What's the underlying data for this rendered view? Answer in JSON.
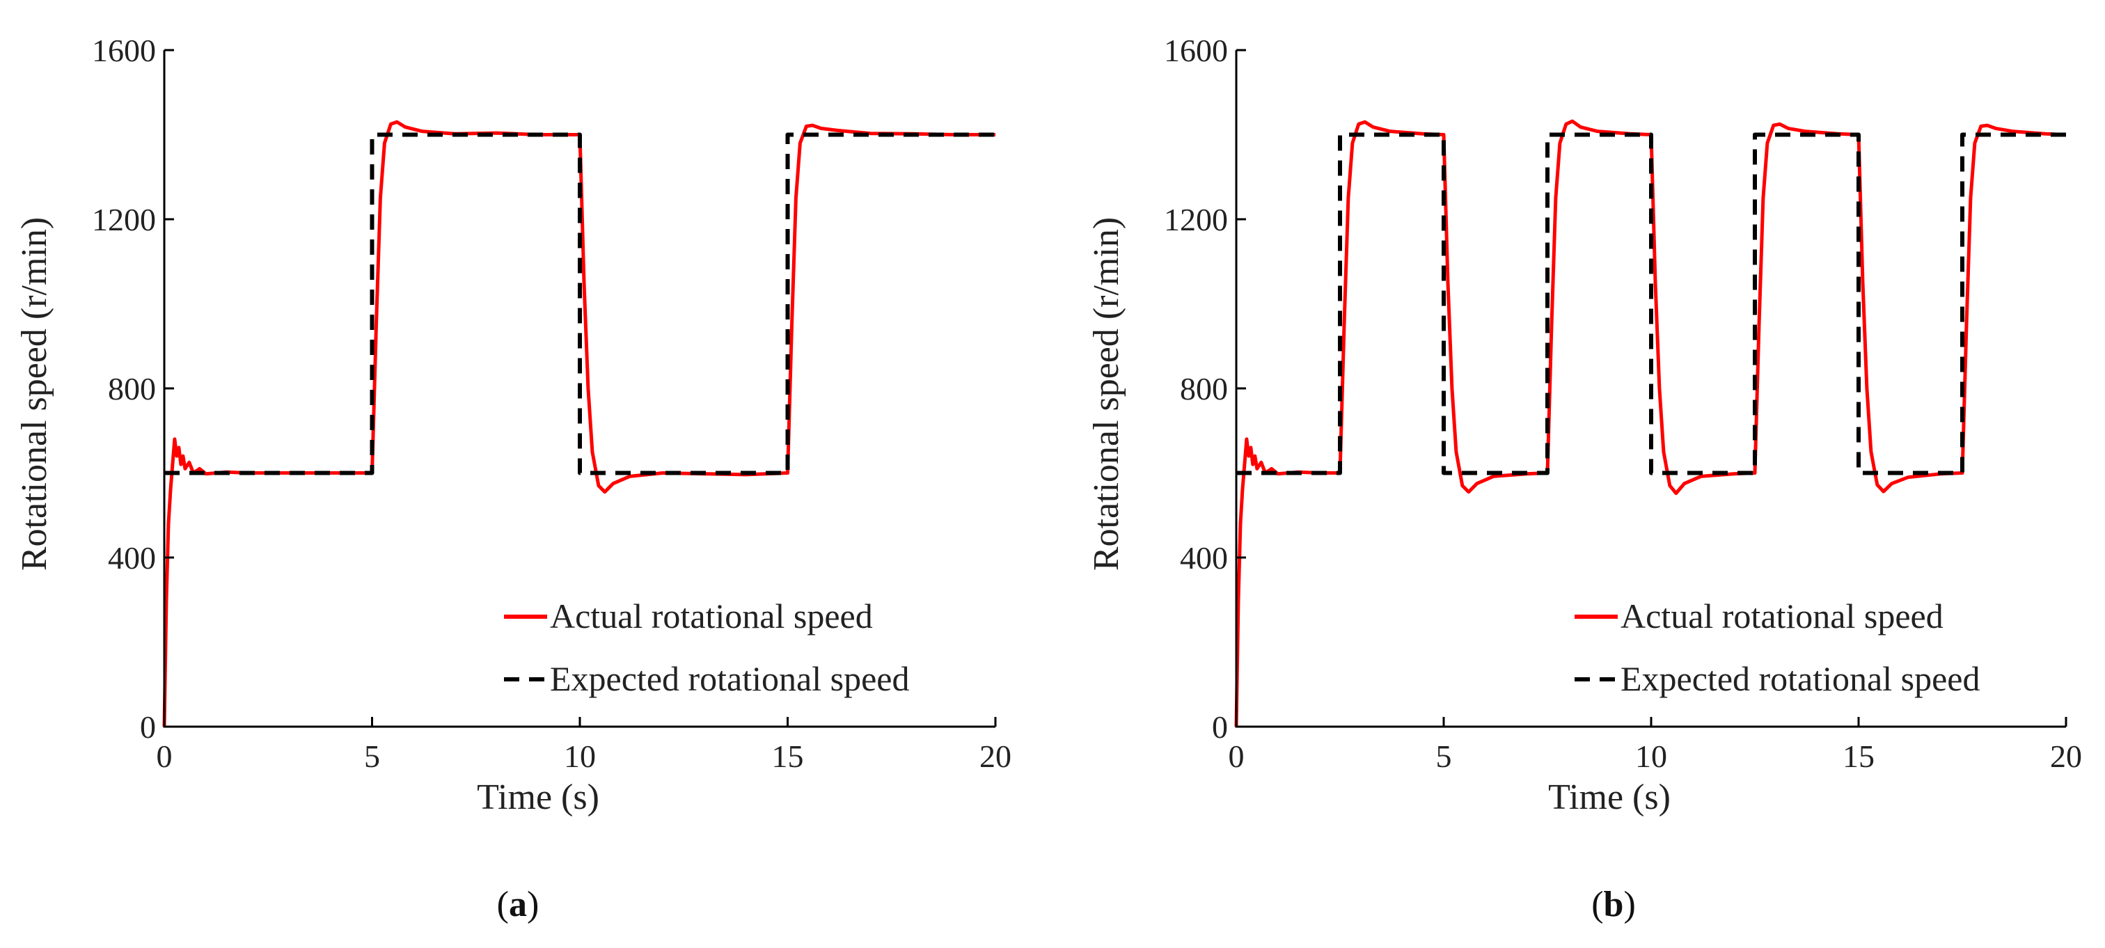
{
  "chart_data": [
    {
      "type": "line",
      "panel": "a",
      "caption_open": "(",
      "caption_letter": "a",
      "caption_close": ")",
      "xlabel": "Time (s)",
      "ylabel": "Rotational speed (r/min)",
      "xlim": [
        0,
        20
      ],
      "ylim": [
        0,
        1600
      ],
      "xticks": [
        0,
        5,
        10,
        15,
        20
      ],
      "yticks": [
        0,
        400,
        800,
        1200,
        1600
      ],
      "legend": {
        "position": "bottom-right",
        "entries": [
          "Actual rotational speed",
          "Expected rotational speed"
        ]
      },
      "series": [
        {
          "name": "Actual rotational speed",
          "color": "#ff0000",
          "style": "solid",
          "x": [
            0,
            0.05,
            0.1,
            0.15,
            0.2,
            0.25,
            0.3,
            0.35,
            0.4,
            0.45,
            0.5,
            0.6,
            0.7,
            0.85,
            1.0,
            1.5,
            2,
            3,
            4,
            5,
            5.1,
            5.2,
            5.3,
            5.45,
            5.6,
            5.8,
            6.2,
            7,
            8,
            9,
            10,
            10.1,
            10.2,
            10.3,
            10.45,
            10.6,
            10.8,
            11.2,
            12,
            13,
            14,
            15,
            15.1,
            15.2,
            15.3,
            15.45,
            15.6,
            15.8,
            16.2,
            17,
            18,
            19,
            20
          ],
          "y": [
            0,
            300,
            480,
            560,
            620,
            680,
            640,
            660,
            620,
            640,
            610,
            625,
            600,
            610,
            598,
            602,
            600,
            600,
            600,
            600,
            950,
            1250,
            1380,
            1425,
            1430,
            1418,
            1408,
            1402,
            1404,
            1400,
            1400,
            1050,
            800,
            650,
            570,
            555,
            575,
            592,
            600,
            598,
            596,
            600,
            950,
            1250,
            1380,
            1420,
            1422,
            1415,
            1410,
            1403,
            1402,
            1400,
            1400
          ]
        },
        {
          "name": "Expected rotational speed",
          "color": "#000000",
          "style": "dashed",
          "x": [
            0,
            5,
            5,
            10,
            10,
            15,
            15,
            20
          ],
          "y": [
            600,
            600,
            1400,
            1400,
            600,
            600,
            1400,
            1400
          ]
        }
      ]
    },
    {
      "type": "line",
      "panel": "b",
      "caption_open": "(",
      "caption_letter": "b",
      "caption_close": ")",
      "xlabel": "Time (s)",
      "ylabel": "Rotational speed (r/min)",
      "xlim": [
        0,
        20
      ],
      "ylim": [
        0,
        1600
      ],
      "xticks": [
        0,
        5,
        10,
        15,
        20
      ],
      "yticks": [
        0,
        400,
        800,
        1200,
        1600
      ],
      "legend": {
        "position": "bottom-right",
        "entries": [
          "Actual rotational speed",
          "Expected rotational speed"
        ]
      },
      "series": [
        {
          "name": "Actual rotational speed",
          "color": "#ff0000",
          "style": "solid",
          "x": [
            0,
            0.05,
            0.1,
            0.15,
            0.2,
            0.25,
            0.3,
            0.35,
            0.4,
            0.45,
            0.5,
            0.6,
            0.7,
            0.85,
            1.0,
            1.5,
            2,
            2.5,
            2.6,
            2.7,
            2.8,
            2.95,
            3.1,
            3.3,
            3.7,
            4.5,
            5,
            5.1,
            5.2,
            5.3,
            5.45,
            5.6,
            5.8,
            6.2,
            7,
            7.5,
            7.6,
            7.7,
            7.8,
            7.95,
            8.1,
            8.3,
            8.7,
            9.5,
            10,
            10.1,
            10.2,
            10.3,
            10.45,
            10.6,
            10.8,
            11.2,
            12,
            12.5,
            12.6,
            12.7,
            12.8,
            12.95,
            13.1,
            13.3,
            13.7,
            14.5,
            15,
            15.1,
            15.2,
            15.3,
            15.45,
            15.6,
            15.8,
            16.2,
            17,
            17.5,
            17.6,
            17.7,
            17.8,
            17.95,
            18.1,
            18.3,
            18.7,
            19.5,
            20
          ],
          "y": [
            0,
            300,
            480,
            560,
            620,
            680,
            640,
            660,
            620,
            640,
            610,
            625,
            600,
            610,
            598,
            602,
            600,
            600,
            950,
            1250,
            1380,
            1425,
            1430,
            1418,
            1408,
            1402,
            1400,
            1050,
            800,
            650,
            570,
            555,
            575,
            592,
            598,
            600,
            950,
            1250,
            1380,
            1425,
            1432,
            1418,
            1408,
            1402,
            1400,
            1050,
            800,
            650,
            570,
            552,
            575,
            592,
            598,
            600,
            950,
            1250,
            1380,
            1422,
            1425,
            1415,
            1408,
            1402,
            1400,
            1050,
            800,
            650,
            572,
            556,
            575,
            590,
            598,
            600,
            950,
            1250,
            1380,
            1420,
            1422,
            1415,
            1408,
            1402,
            1400
          ]
        },
        {
          "name": "Expected rotational speed",
          "color": "#000000",
          "style": "dashed",
          "x": [
            0,
            2.5,
            2.5,
            5,
            5,
            7.5,
            7.5,
            10,
            10,
            12.5,
            12.5,
            15,
            15,
            17.5,
            17.5,
            20
          ],
          "y": [
            600,
            600,
            1400,
            1400,
            600,
            600,
            1400,
            1400,
            600,
            600,
            1400,
            1400,
            600,
            600,
            1400,
            1400
          ]
        }
      ]
    }
  ]
}
